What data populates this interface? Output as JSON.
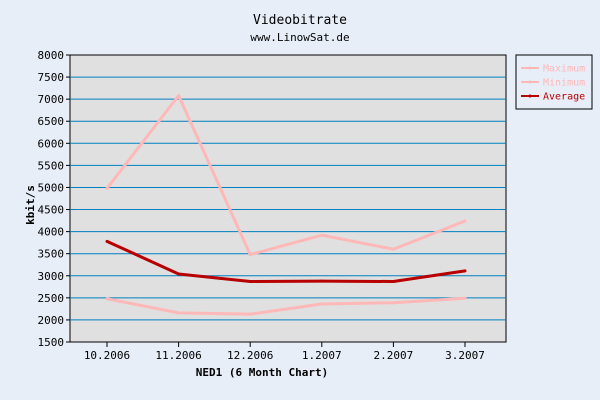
{
  "chart_data": {
    "type": "line",
    "title": "Videobitrate",
    "subtitle": "www.LinowSat.de",
    "xlabel": "NED1 (6 Month Chart)",
    "ylabel": "kbit/s",
    "categories": [
      "10.2006",
      "11.2006",
      "12.2006",
      "1.2007",
      "2.2007",
      "3.2007"
    ],
    "ylim": [
      1500,
      8000
    ],
    "yticks": [
      1500,
      2000,
      2500,
      3000,
      3500,
      4000,
      4500,
      5000,
      5500,
      6000,
      6500,
      7000,
      7500,
      8000
    ],
    "grid": true,
    "legend_position": "top-right",
    "series": [
      {
        "name": "Maximum",
        "color": "#ffb8b8",
        "values": [
          4980,
          7080,
          3480,
          3920,
          3600,
          4240
        ]
      },
      {
        "name": "Minimum",
        "color": "#ffb8b8",
        "values": [
          2480,
          2160,
          2130,
          2360,
          2390,
          2490
        ]
      },
      {
        "name": "Average",
        "color": "#b80000",
        "values": [
          3780,
          3040,
          2870,
          2880,
          2870,
          3110
        ]
      }
    ],
    "colors": {
      "background": "#e8eef8",
      "plot_background": "#e0e0e0",
      "grid": "#0080c0"
    }
  }
}
